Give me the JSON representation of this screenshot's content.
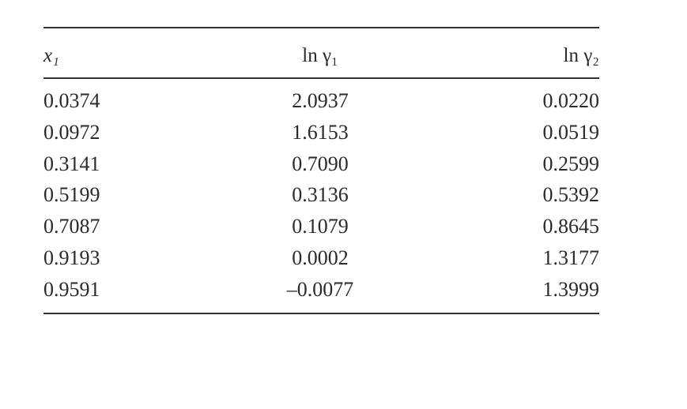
{
  "table": {
    "header": [
      "x₁",
      "ln γ₁",
      "ln γ₂"
    ],
    "rows": [
      [
        "0.0374",
        "2.0937",
        "0.0220"
      ],
      [
        "0.0972",
        "1.6153",
        "0.0519"
      ],
      [
        "0.3141",
        "0.7090",
        "0.2599"
      ],
      [
        "0.5199",
        "0.3136",
        "0.5392"
      ],
      [
        "0.7087",
        "0.1079",
        "0.8645"
      ],
      [
        "0.9193",
        "0.0002",
        "1.3177"
      ],
      [
        "0.9591",
        "–0.0077",
        "1.3999"
      ]
    ]
  }
}
